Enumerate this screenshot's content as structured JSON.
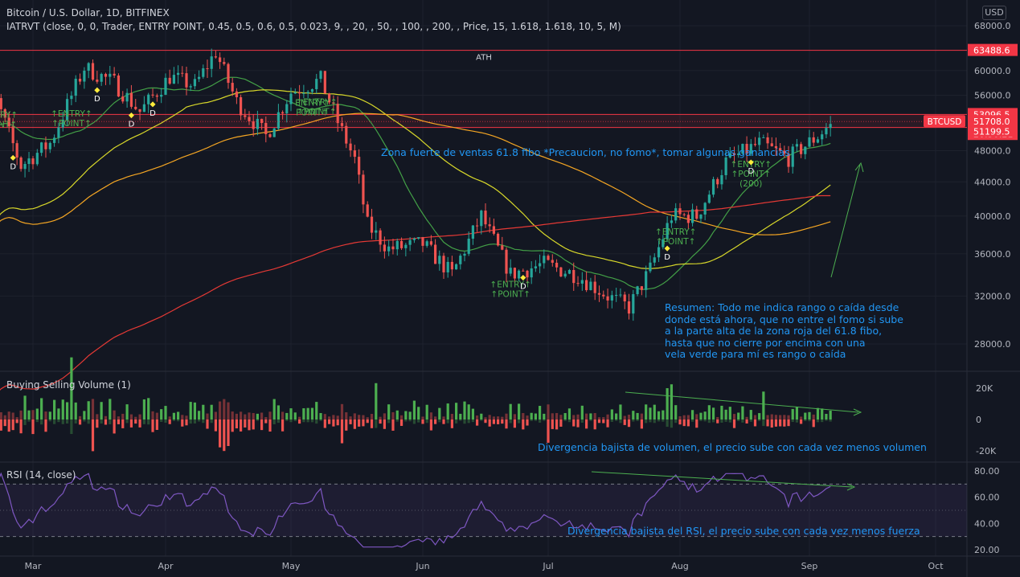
{
  "header": {
    "symbol_title": "Bitcoin / U.S. Dollar, 1D, BITFINEX",
    "indicator_line": "IATRVT (close, 0, 0, Trader, ENTRY POINT, 0.45, 0.5, 0.6, 0.5, 0.023, 9, , 20, , 50, , 100, , 200, , Price, 15, 1.618, 1.618, 10, 5, M)",
    "currency_badge": "USD"
  },
  "colors": {
    "background": "#131722",
    "up": "#26a69a",
    "down": "#ef5350",
    "resistance": "#f23645",
    "ma_fast": "#43a047",
    "ma_mid": "#d8d82a",
    "ma_slow": "#f5a623",
    "ma_long": "#e53935",
    "rsi": "#7e57c2",
    "annotation": "#2196f3",
    "trend": "#4caf50",
    "entry_label": "#4caf50",
    "diamond": "#ffeb3b"
  },
  "chart_data": [
    {
      "type": "line",
      "pane": "price",
      "title": "Bitcoin / U.S. Dollar, 1D, BITFINEX",
      "x_axis": {
        "ticks": [
          "Mar",
          "Apr",
          "May",
          "Jun",
          "Jul",
          "Aug",
          "Sep",
          "Oct"
        ],
        "tick_dates": [
          "2021-03-01",
          "2021-04-01",
          "2021-05-01",
          "2021-06-01",
          "2021-07-01",
          "2021-08-01",
          "2021-09-01",
          "2021-10-01"
        ],
        "range": [
          "2021-02-10",
          "2021-10-20"
        ]
      },
      "y_axis": {
        "range": [
          24000,
          70000
        ],
        "log": true,
        "ticks": [
          "68000.0",
          "60000.0",
          "56000.0",
          "48000.0",
          "44000.0",
          "40000.0",
          "36000.0",
          "32000.0",
          "28000.0"
        ],
        "tick_values": [
          68000,
          60000,
          56000,
          48000,
          44000,
          40000,
          36000,
          32000,
          28000
        ]
      },
      "price_labels": [
        {
          "text": "63488.6",
          "value": 63488.6
        },
        {
          "text": "53096.5",
          "value": 53096.5
        },
        {
          "text": "51708.0",
          "value": 51708.0
        },
        {
          "text": "20:50:21",
          "value": 51708.0
        },
        {
          "text": "51199.5",
          "value": 51199.5
        }
      ],
      "symbol_tag": "BTCUSD",
      "last_price": 51708.0,
      "levels": [
        {
          "name": "ATH",
          "value": 63488.6,
          "label": "ATH"
        },
        {
          "name": "fib-zone-top",
          "value": 53096.5
        },
        {
          "name": "fib-zone-bottom",
          "value": 51199.5
        }
      ],
      "series": [
        {
          "name": "BTCUSD",
          "x": [
            "2021-02-15",
            "2021-02-20",
            "2021-02-26",
            "2021-03-05",
            "2021-03-13",
            "2021-03-20",
            "2021-03-26",
            "2021-04-02",
            "2021-04-08",
            "2021-04-13",
            "2021-04-18",
            "2021-04-25",
            "2021-05-01",
            "2021-05-08",
            "2021-05-12",
            "2021-05-16",
            "2021-05-19",
            "2021-05-24",
            "2021-06-01",
            "2021-06-08",
            "2021-06-15",
            "2021-06-22",
            "2021-06-30",
            "2021-07-08",
            "2021-07-15",
            "2021-07-20",
            "2021-07-25",
            "2021-07-30",
            "2021-08-05",
            "2021-08-12",
            "2021-08-20",
            "2021-08-27",
            "2021-09-03",
            "2021-09-06"
          ],
          "y": [
            48000,
            55000,
            46000,
            49000,
            60500,
            58000,
            53500,
            59000,
            57500,
            63200,
            55000,
            50000,
            56500,
            58500,
            52000,
            46800,
            39000,
            36500,
            37000,
            34000,
            40000,
            34000,
            35000,
            33900,
            32000,
            31000,
            34500,
            40000,
            40000,
            46500,
            49000,
            47000,
            50000,
            51708
          ]
        }
      ],
      "annotations": [
        {
          "kind": "zone-text",
          "text": "Zona fuerte de ventas 61.8 fibo *Precaucion, no fomo*, tomar algunas ganancias"
        },
        {
          "kind": "note",
          "lines": [
            "Resumen: Todo me indica rango o caída desde",
            "donde está ahora, que no entre el fomo si sube",
            "a la parte alta de la zona roja del 61.8 fibo,",
            "hasta que no cierre por encima con una",
            "vela verde para mí es rango o caída"
          ]
        }
      ],
      "signals": [
        {
          "type": "entry",
          "date": "2021-02-20",
          "lines": [
            "↑ENTRY↑",
            "↑POINT↑"
          ]
        },
        {
          "type": "entry",
          "date": "2021-03-10",
          "lines": [
            "↑ENTRY↑",
            "↑POINT↑"
          ]
        },
        {
          "type": "entry",
          "date": "2021-05-06",
          "lines": [
            "ENTRY↑",
            "POINT↑"
          ]
        },
        {
          "type": "entry",
          "date": "2021-05-07",
          "lines": [
            "↑ENTRY↑",
            "↑POINT↑"
          ]
        },
        {
          "type": "entry",
          "date": "2021-06-22",
          "lines": [
            "↑ENTRY↑",
            "↑POINT↑"
          ]
        },
        {
          "type": "entry",
          "date": "2021-07-31",
          "lines": [
            "↑ENTRY↑",
            "↑POINT↑"
          ]
        },
        {
          "type": "entry",
          "date": "2021-08-18",
          "lines": [
            "↑ENTRY↑",
            "↑POINT↑",
            "(200)"
          ]
        },
        {
          "type": "D",
          "date": "2021-02-17"
        },
        {
          "type": "D",
          "date": "2021-02-24"
        },
        {
          "type": "D",
          "date": "2021-03-16"
        },
        {
          "type": "D",
          "date": "2021-03-24"
        },
        {
          "type": "D",
          "date": "2021-03-29"
        },
        {
          "type": "D",
          "date": "2021-06-25"
        },
        {
          "type": "D",
          "date": "2021-07-29"
        },
        {
          "type": "D",
          "date": "2021-08-18"
        }
      ]
    },
    {
      "type": "bar",
      "pane": "volume",
      "title": "Buying Selling Volume (1)",
      "y_axis": {
        "ticks": [
          "20K",
          "0",
          "-20K"
        ],
        "tick_values": [
          20000,
          0,
          -20000
        ]
      },
      "annotation": "Divergencia bajista de volumen, el precio sube con cada vez menos volumen"
    },
    {
      "type": "line",
      "pane": "rsi",
      "title": "RSI (14, close)",
      "y_axis": {
        "range": [
          15,
          85
        ],
        "ticks": [
          "80.00",
          "60.00",
          "40.00",
          "20.00"
        ],
        "tick_values": [
          80,
          60,
          40,
          20
        ]
      },
      "bands": [
        70,
        30
      ],
      "annotation": "Divergencia bajista del RSI, el precio sube con cada vez menos fuerza"
    }
  ],
  "price_annotation": {
    "zone_text": "Zona fuerte de ventas 61.8 fibo *Precaucion, no fomo*, tomar algunas ganancias",
    "ath": "ATH",
    "summary": [
      "Resumen: Todo me indica rango o caída desde",
      "donde está ahora, que no entre el fomo si sube",
      "a la parte alta de la zona roja del 61.8 fibo,",
      "hasta que no cierre por encima con una",
      "vela verde para mí es rango o caída"
    ]
  },
  "volume_annotation": "Divergencia bajista de volumen, el precio sube con cada vez menos volumen",
  "rsi_annotation": "Divergencia bajista del RSI, el precio sube con cada vez menos fuerza"
}
